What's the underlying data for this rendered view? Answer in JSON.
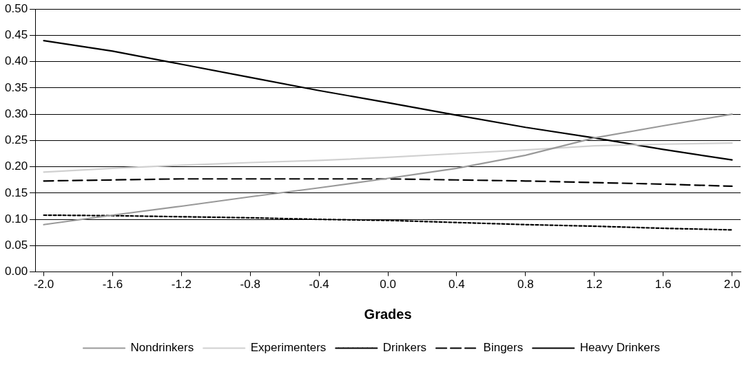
{
  "chart_data": {
    "type": "line",
    "xlabel": "Grades",
    "x": [
      -2.0,
      -1.6,
      -1.2,
      -0.8,
      -0.4,
      0.0,
      0.4,
      0.8,
      1.2,
      1.6,
      2.0
    ],
    "series": [
      {
        "name": "Nondrinkers",
        "color": "#999999",
        "line_style": "solid",
        "values": [
          0.09,
          0.108,
          0.125,
          0.143,
          0.16,
          0.178,
          0.197,
          0.222,
          0.255,
          0.278,
          0.3
        ]
      },
      {
        "name": "Experimenters",
        "color": "#d0d0d0",
        "line_style": "solid",
        "values": [
          0.19,
          0.197,
          0.203,
          0.208,
          0.212,
          0.218,
          0.225,
          0.232,
          0.24,
          0.243,
          0.245
        ]
      },
      {
        "name": "Drinkers",
        "color": "#000000",
        "line_style": "dotted",
        "values": [
          0.108,
          0.107,
          0.105,
          0.103,
          0.1,
          0.098,
          0.094,
          0.09,
          0.087,
          0.083,
          0.08
        ]
      },
      {
        "name": "Bingers",
        "color": "#000000",
        "line_style": "dashed",
        "values": [
          0.173,
          0.175,
          0.177,
          0.177,
          0.177,
          0.177,
          0.175,
          0.173,
          0.17,
          0.167,
          0.163
        ]
      },
      {
        "name": "Heavy Drinkers",
        "color": "#000000",
        "line_style": "solid",
        "values": [
          0.44,
          0.42,
          0.395,
          0.37,
          0.345,
          0.322,
          0.298,
          0.275,
          0.255,
          0.233,
          0.213
        ]
      }
    ],
    "xlim": [
      -2.05,
      2.05
    ],
    "xticks": [
      {
        "value": -2.0,
        "label": "-2.0"
      },
      {
        "value": -1.6,
        "label": "-1.6"
      },
      {
        "value": -1.2,
        "label": "-1.2"
      },
      {
        "value": -0.8,
        "label": "-0.8"
      },
      {
        "value": -0.4,
        "label": "-0.4"
      },
      {
        "value": 0.0,
        "label": "0.0"
      },
      {
        "value": 0.4,
        "label": "0.4"
      },
      {
        "value": 0.8,
        "label": "0.8"
      },
      {
        "value": 1.2,
        "label": "1.2"
      },
      {
        "value": 1.6,
        "label": "1.6"
      },
      {
        "value": 2.0,
        "label": "2.0"
      }
    ],
    "ylim": [
      0,
      0.5
    ],
    "yticks": [
      {
        "value": 0,
        "label": "0.00"
      },
      {
        "value": 0.05,
        "label": "0.05"
      },
      {
        "value": 0.1,
        "label": "0.10"
      },
      {
        "value": 0.15,
        "label": "0.15"
      },
      {
        "value": 0.2,
        "label": "0.20"
      },
      {
        "value": 0.25,
        "label": "0.25"
      },
      {
        "value": 0.3,
        "label": "0.30"
      },
      {
        "value": 0.35,
        "label": "0.35"
      },
      {
        "value": 0.4,
        "label": "0.40"
      },
      {
        "value": 0.45,
        "label": "0.45"
      },
      {
        "value": 0.5,
        "label": "0.50"
      }
    ],
    "grid": "y",
    "legend": "bottom",
    "marker": "none"
  }
}
